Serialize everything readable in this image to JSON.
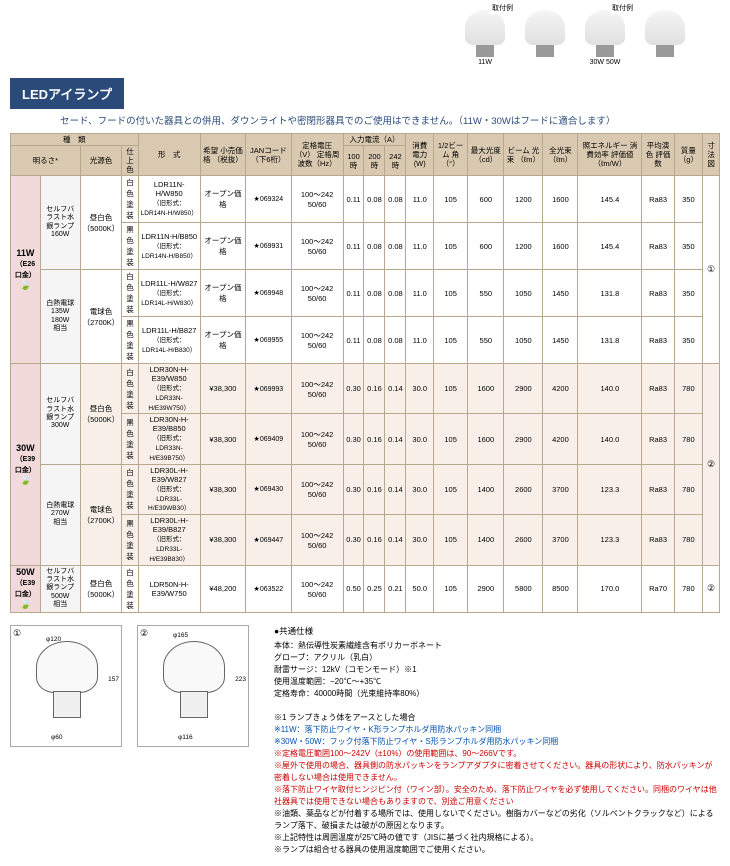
{
  "productImages": [
    {
      "label": "取付例",
      "caption": "11W"
    },
    {
      "label": "",
      "caption": ""
    },
    {
      "label": "取付例",
      "caption": "30W\n50W"
    },
    {
      "label": "",
      "caption": ""
    }
  ],
  "headerBand": "LEDアイランプ",
  "warning": "セード、フードの付いた器具との併用、ダウンライトや密閉形器具でのご使用はできません。（11W・30Wはフードに適合します）",
  "tableHeaders": {
    "kind": "種　類",
    "brightness": "明るさ*",
    "lightColor": "光源色",
    "finish": "仕上色",
    "model": "形　式",
    "price": "希望\n小売価格\n（税抜）",
    "jan": "JANコード\n（下6桁）",
    "voltage": "定格電圧（V）\n定格周波数（Hz）",
    "current": "入力電流（A）",
    "current100": "100時",
    "current200": "200時",
    "current242": "242時",
    "power": "消費\n電力\n(W)",
    "beamAngle": "1/2ビーム\n角\n（°）",
    "maxIntensity": "最大光度\n（cd）",
    "beamFlux": "ビーム\n光束\n（ℓm）",
    "totalFlux": "全光束\n（ℓm）",
    "efficiency": "照エネルギー\n消費効率\n評価値\n（ℓm/W）",
    "cri": "平均演色\n評価数",
    "weight": "質量\n（g）",
    "dim": "寸法図"
  },
  "wattages": {
    "w11": {
      "main": "11W",
      "sub": "（E26口金）"
    },
    "w30": {
      "main": "30W",
      "sub": "（E39口金）"
    },
    "w50": {
      "main": "50W",
      "sub": "（E39口金）"
    }
  },
  "descriptions": {
    "d11a": "セルフバラスト水銀ランプ\n160W",
    "d11b": "白熱電球\n135W\n180W\n相当",
    "d30a": "セルフバラスト水銀ランプ\n300W",
    "d30b": "白熱電球\n270W\n相当",
    "d50": "セルフバラスト水銀ランプ\n500W\n相当"
  },
  "lightColors": {
    "daylight": "昼白色\n（5000K）",
    "warmwhite": "電球色\n（2700K）"
  },
  "finishes": {
    "white": "白色\n塗装",
    "black": "黒色\n塗装"
  },
  "rows": [
    {
      "model": "LDR11N-H/W850",
      "sub": "（旧形式：LDR14N-H/W850）",
      "price": "オープン価格",
      "jan": "069324",
      "volt": "100～242\n50/60",
      "c100": "0.11",
      "c200": "0.08",
      "c242": "0.08",
      "power": "11.0",
      "beam": "105",
      "cd": "600",
      "bf": "1200",
      "tf": "1600",
      "eff": "145.4",
      "cri": "Ra83",
      "wt": "350",
      "dim": "①"
    },
    {
      "model": "LDR11N-H/B850",
      "sub": "（旧形式：LDR14N-H/B850）",
      "price": "オープン価格",
      "jan": "069931",
      "volt": "100～242\n50/60",
      "c100": "0.11",
      "c200": "0.08",
      "c242": "0.08",
      "power": "11.0",
      "beam": "105",
      "cd": "600",
      "bf": "1200",
      "tf": "1600",
      "eff": "145.4",
      "cri": "Ra83",
      "wt": "350",
      "dim": "①"
    },
    {
      "model": "LDR11L-H/W827",
      "sub": "（旧形式：LDR14L-H/W830）",
      "price": "オープン価格",
      "jan": "069948",
      "volt": "100～242\n50/60",
      "c100": "0.11",
      "c200": "0.08",
      "c242": "0.08",
      "power": "11.0",
      "beam": "105",
      "cd": "550",
      "bf": "1050",
      "tf": "1450",
      "eff": "131.8",
      "cri": "Ra83",
      "wt": "350",
      "dim": "①"
    },
    {
      "model": "LDR11L-H/B827",
      "sub": "（旧形式：LDR14L-H/B830）",
      "price": "オープン価格",
      "jan": "069955",
      "volt": "100～242\n50/60",
      "c100": "0.11",
      "c200": "0.08",
      "c242": "0.08",
      "power": "11.0",
      "beam": "105",
      "cd": "550",
      "bf": "1050",
      "tf": "1450",
      "eff": "131.8",
      "cri": "Ra83",
      "wt": "350",
      "dim": "①"
    },
    {
      "model": "LDR30N-H-E39/W850",
      "sub": "（旧形式：LDR33N-H/E39W750）",
      "price": "¥38,300",
      "jan": "069993",
      "volt": "100～242\n50/60",
      "c100": "0.30",
      "c200": "0.16",
      "c242": "0.14",
      "power": "30.0",
      "beam": "105",
      "cd": "1600",
      "bf": "2900",
      "tf": "4200",
      "eff": "140.0",
      "cri": "Ra83",
      "wt": "780",
      "dim": "②"
    },
    {
      "model": "LDR30N-H-E39/B850",
      "sub": "（旧形式：LDR33N-H/E39B750）",
      "price": "¥38,300",
      "jan": "069409",
      "volt": "100～242\n50/60",
      "c100": "0.30",
      "c200": "0.16",
      "c242": "0.14",
      "power": "30.0",
      "beam": "105",
      "cd": "1600",
      "bf": "2900",
      "tf": "4200",
      "eff": "140.0",
      "cri": "Ra83",
      "wt": "780",
      "dim": "②"
    },
    {
      "model": "LDR30L-H-E39/W827",
      "sub": "（旧形式：LDR33L-H/E39WB30）",
      "price": "¥38,300",
      "jan": "069430",
      "volt": "100～242\n50/60",
      "c100": "0.30",
      "c200": "0.16",
      "c242": "0.14",
      "power": "30.0",
      "beam": "105",
      "cd": "1400",
      "bf": "2600",
      "tf": "3700",
      "eff": "123.3",
      "cri": "Ra83",
      "wt": "780",
      "dim": "②"
    },
    {
      "model": "LDR30L-H-E39/B827",
      "sub": "（旧形式：LDR33L-H/E39B830）",
      "price": "¥38,300",
      "jan": "069447",
      "volt": "100～242\n50/60",
      "c100": "0.30",
      "c200": "0.16",
      "c242": "0.14",
      "power": "30.0",
      "beam": "105",
      "cd": "1400",
      "bf": "2600",
      "tf": "3700",
      "eff": "123.3",
      "cri": "Ra83",
      "wt": "780",
      "dim": "②"
    },
    {
      "model": "LDR50N-H-E39/W750",
      "sub": "",
      "price": "¥48,200",
      "jan": "063522",
      "volt": "100～242\n50/60",
      "c100": "0.50",
      "c200": "0.25",
      "c242": "0.21",
      "power": "50.0",
      "beam": "105",
      "cd": "2900",
      "bf": "5800",
      "tf": "8500",
      "eff": "170.0",
      "cri": "Ra70",
      "wt": "780",
      "dim": "②"
    }
  ],
  "diagramLabels": {
    "d1_num": "①",
    "d2_num": "②",
    "d1_w": "φ120",
    "d1_h": "157",
    "d1_base": "φ60",
    "d2_top": "φ165",
    "d2_h": "223",
    "d2_base": "φ116"
  },
  "notes": {
    "title": "●共通仕様",
    "lines": [
      "本体：熱伝導性炭素繊維含有ポリカーボネート",
      "グローブ：アクリル（乳白）",
      "耐雷サージ：12kV（コモンモード）※1",
      "使用温度範囲：−20℃～+35℃",
      "定格寿命：40000時間（光束維持率80%）",
      "",
      "※1 ランプきょう体をアースとした場合"
    ],
    "blueLines": [
      "※11W：落下防止ワイヤ・K形ランプホルダ用防水パッキン同梱",
      "※30W・50W：フック付落下防止ワイヤ・S形ランプホルダ用防水パッキン同梱"
    ],
    "redLines": [
      "※定格電圧範囲100～242V（±10%）の使用範囲は、90～266Vです。",
      "※屋外で使用の場合、器具側の防水パッキンをランプアダプタに密着させてください。器具の形状により、防水パッキンが密着しない場合は使用できません。",
      "※落下防止ワイヤ取付ヒンジピン付（ワイン部）。安全のため、落下防止ワイヤを必ず使用してください。同梱のワイヤは他社器具では使用できない場合もありますので、別途ご用意ください"
    ],
    "blackLines": [
      "※油類、薬品などが付着する場所では、使用しないでください。樹脂カバーなどの劣化（ソルベントクラックなど）によるランプ落下、破損または破がの原因となります。",
      "※上記特性は周囲温度が25℃時の値です（JISに基づく社内規格による）。",
      "※ランプは組合せる器具の使用温度範囲でご使用ください。"
    ]
  }
}
